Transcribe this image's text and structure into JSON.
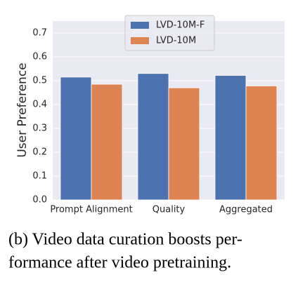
{
  "chart_data": {
    "type": "bar",
    "categories": [
      "Prompt Alignment",
      "Quality",
      "Aggregated"
    ],
    "series": [
      {
        "name": "LVD-10M-F",
        "color": "#4c72b0",
        "values": [
          0.515,
          0.53,
          0.522
        ]
      },
      {
        "name": "LVD-10M",
        "color": "#dd8452",
        "values": [
          0.485,
          0.47,
          0.478
        ]
      }
    ],
    "ylabel": "User Preference",
    "ylim": [
      0,
      0.75
    ],
    "yticks": [
      {
        "value": 0,
        "label": "0.0"
      },
      0.1,
      0.2,
      0.3,
      0.4,
      0.5,
      0.6,
      0.7
    ],
    "grid": true,
    "legend": "upper center"
  },
  "caption": [
    "(b)  Video data curation boosts per-",
    "formance after video pretraining."
  ]
}
